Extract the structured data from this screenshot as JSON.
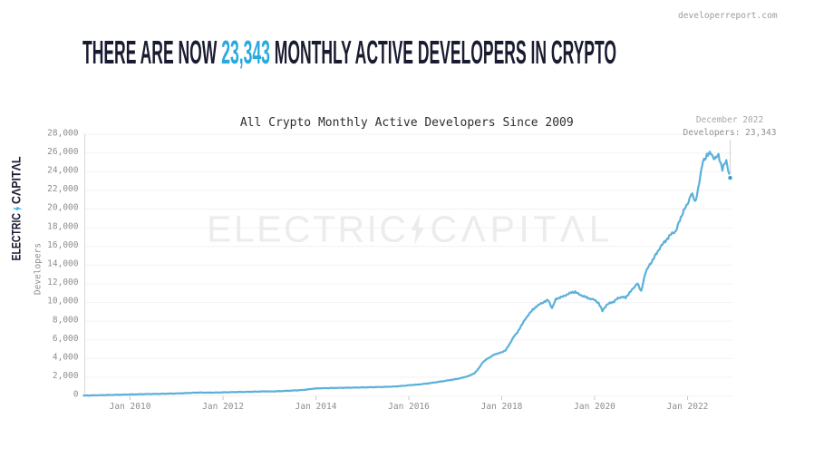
{
  "site": {
    "label": "developerreport.com"
  },
  "headline": {
    "prefix": "THERE ARE NOW ",
    "highlight": "23,343",
    "suffix": " MONTHLY ACTIVE DEVELOPERS IN CRYPTO",
    "dark_color": "#191b30",
    "accent_color": "#29a9e0"
  },
  "brand": {
    "left_word": "ELECTRIC",
    "right_word": "CΛPITΛL",
    "separator": "lightning-bolt-icon",
    "text_color": "#1b1d33",
    "bolt_color": "#29a9e0"
  },
  "watermark": {
    "left_word": "ELECTRIC",
    "right_word": "CΛPITΛL",
    "separator": "lightning-bolt-icon",
    "color": "#ededed"
  },
  "chart_data": {
    "type": "line",
    "title": "All Crypto Monthly Active Developers Since 2009",
    "ylabel": "Developers",
    "xlabel": "",
    "x_start": "Jan 2009",
    "x_end": "Dec 2022",
    "x_tick_labels": [
      "Jan 2010",
      "Jan 2012",
      "Jan 2014",
      "Jan 2016",
      "Jan 2018",
      "Jan 2020",
      "Jan 2022"
    ],
    "y_ticks": [
      0,
      2000,
      4000,
      6000,
      8000,
      10000,
      12000,
      14000,
      16000,
      18000,
      20000,
      22000,
      24000,
      26000,
      28000
    ],
    "ylim": [
      0,
      28000
    ],
    "grid": "horizontal",
    "legend": "none",
    "annotation": {
      "line1": "December 2022",
      "line2": "Developers: 23,343"
    },
    "final_value": 23343,
    "line_color": "#5bb0da",
    "dot_color": "#3b9bd1",
    "series": [
      {
        "name": "All Crypto Monthly Active Developers",
        "x_monthly_from": "Jan 2009",
        "values": [
          30,
          40,
          50,
          60,
          70,
          80,
          90,
          100,
          110,
          120,
          130,
          140,
          150,
          160,
          170,
          180,
          190,
          200,
          205,
          210,
          220,
          230,
          240,
          250,
          260,
          275,
          290,
          310,
          330,
          345,
          355,
          350,
          345,
          350,
          355,
          365,
          375,
          385,
          395,
          405,
          415,
          420,
          430,
          440,
          450,
          460,
          475,
          490,
          470,
          480,
          495,
          510,
          530,
          550,
          570,
          590,
          615,
          645,
          695,
          755,
          790,
          810,
          820,
          830,
          840,
          848,
          856,
          864,
          872,
          880,
          888,
          896,
          905,
          915,
          925,
          935,
          945,
          955,
          965,
          980,
          1000,
          1025,
          1055,
          1090,
          1140,
          1170,
          1200,
          1240,
          1290,
          1340,
          1400,
          1460,
          1520,
          1580,
          1650,
          1720,
          1780,
          1860,
          1960,
          2080,
          2220,
          2450,
          2900,
          3550,
          3900,
          4150,
          4400,
          4550,
          4650,
          4900,
          5500,
          6300,
          6750,
          7500,
          8150,
          8750,
          9200,
          9600,
          9850,
          10080,
          10250,
          9400,
          10350,
          10550,
          10650,
          10900,
          11050,
          11150,
          10850,
          10700,
          10500,
          10400,
          10250,
          9950,
          9100,
          9700,
          9950,
          10100,
          10450,
          10600,
          10500,
          11050,
          11500,
          12100,
          11150,
          13050,
          13900,
          14550,
          15250,
          15950,
          16450,
          16950,
          17400,
          17650,
          18800,
          19850,
          20500,
          21750,
          20700,
          22800,
          25150,
          25750,
          26000,
          25350,
          25750,
          24300,
          25150,
          23343
        ]
      }
    ]
  }
}
